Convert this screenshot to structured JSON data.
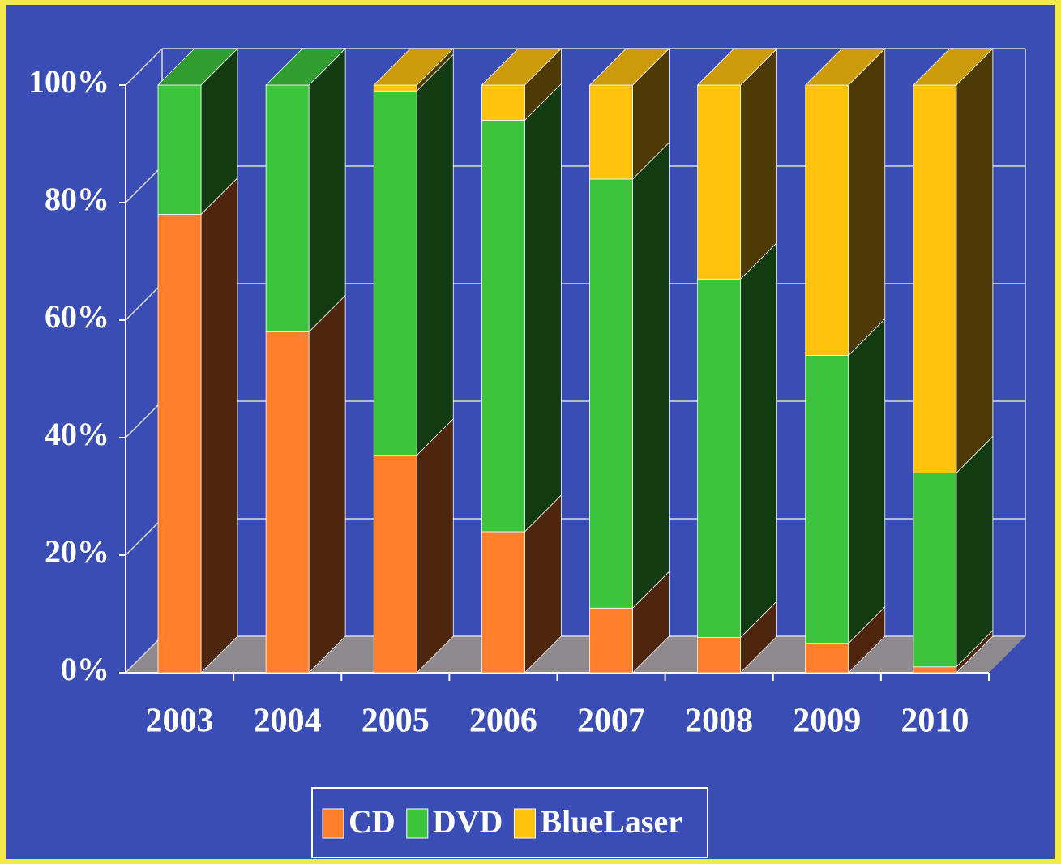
{
  "chart_data": {
    "type": "bar",
    "stacked": true,
    "three_d": true,
    "categories": [
      "2003",
      "2004",
      "2005",
      "2006",
      "2007",
      "2008",
      "2009",
      "2010"
    ],
    "series": [
      {
        "name": "CD",
        "color": "#ff7f2a",
        "values": [
          78,
          58,
          37,
          24,
          11,
          6,
          5,
          1
        ]
      },
      {
        "name": "DVD",
        "color": "#3cc43c",
        "values": [
          22,
          42,
          62,
          70,
          73,
          61,
          49,
          33
        ]
      },
      {
        "name": "BlueLaser",
        "color": "#ffc20e",
        "values": [
          0,
          0,
          1,
          6,
          16,
          33,
          46,
          66
        ]
      }
    ],
    "ylim": [
      0,
      100
    ],
    "yticks": [
      {
        "value": 0,
        "label": "0%"
      },
      {
        "value": 20,
        "label": "20%"
      },
      {
        "value": 40,
        "label": "40%"
      },
      {
        "value": 60,
        "label": "60%"
      },
      {
        "value": 80,
        "label": "80%"
      },
      {
        "value": 100,
        "label": "100%"
      }
    ],
    "grid": true,
    "legend": "bottom"
  }
}
